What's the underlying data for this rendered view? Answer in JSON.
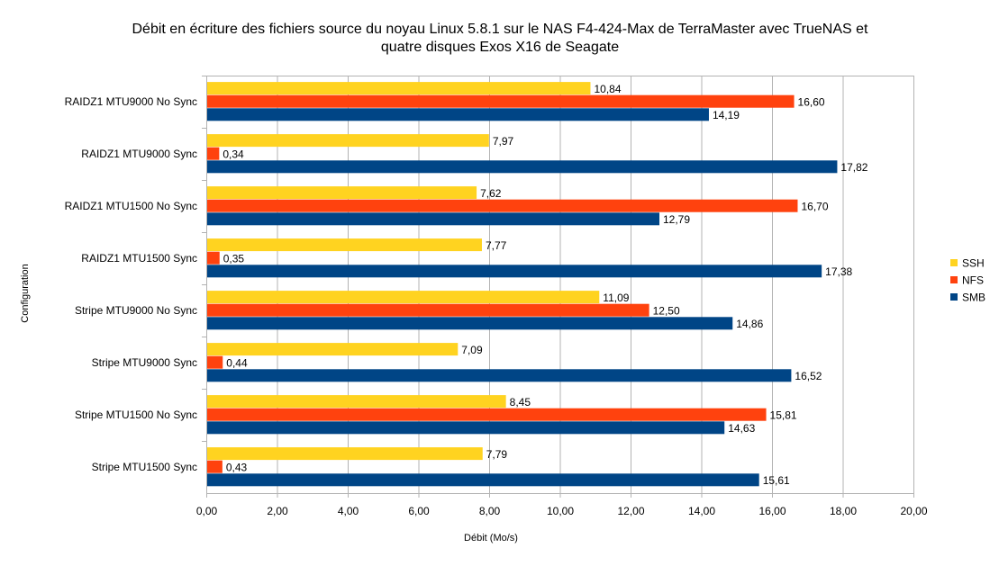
{
  "chart_data": {
    "type": "bar",
    "orientation": "horizontal",
    "title": [
      "Débit en écriture des fichiers source du noyau Linux 5.8.1 sur le NAS F4-424-Max de TerraMaster avec TrueNAS et",
      "quatre disques Exos X16 de Seagate"
    ],
    "xlabel": "Débit (Mo/s)",
    "ylabel": "Configuration",
    "xlim": [
      0,
      20
    ],
    "xticks": [
      "0,00",
      "2,00",
      "4,00",
      "6,00",
      "8,00",
      "10,00",
      "12,00",
      "14,00",
      "16,00",
      "18,00",
      "20,00"
    ],
    "grid": true,
    "legend_position": "right",
    "categories": [
      "RAIDZ1 MTU9000 No Sync",
      "RAIDZ1 MTU9000 Sync",
      "RAIDZ1 MTU1500 No Sync",
      "RAIDZ1 MTU1500 Sync",
      "Stripe MTU9000 No Sync",
      "Stripe MTU9000 Sync",
      "Stripe MTU1500 No Sync",
      "Stripe MTU1500 Sync"
    ],
    "series": [
      {
        "name": "SSH",
        "color": "#ffd320",
        "values": [
          10.84,
          7.97,
          7.62,
          7.77,
          11.09,
          7.09,
          8.45,
          7.79
        ]
      },
      {
        "name": "NFS",
        "color": "#ff420e",
        "values": [
          16.6,
          0.34,
          16.7,
          0.35,
          12.5,
          0.44,
          15.81,
          0.43
        ]
      },
      {
        "name": "SMB",
        "color": "#004586",
        "values": [
          14.19,
          17.82,
          12.79,
          17.38,
          14.86,
          16.52,
          14.63,
          15.61
        ]
      }
    ]
  }
}
